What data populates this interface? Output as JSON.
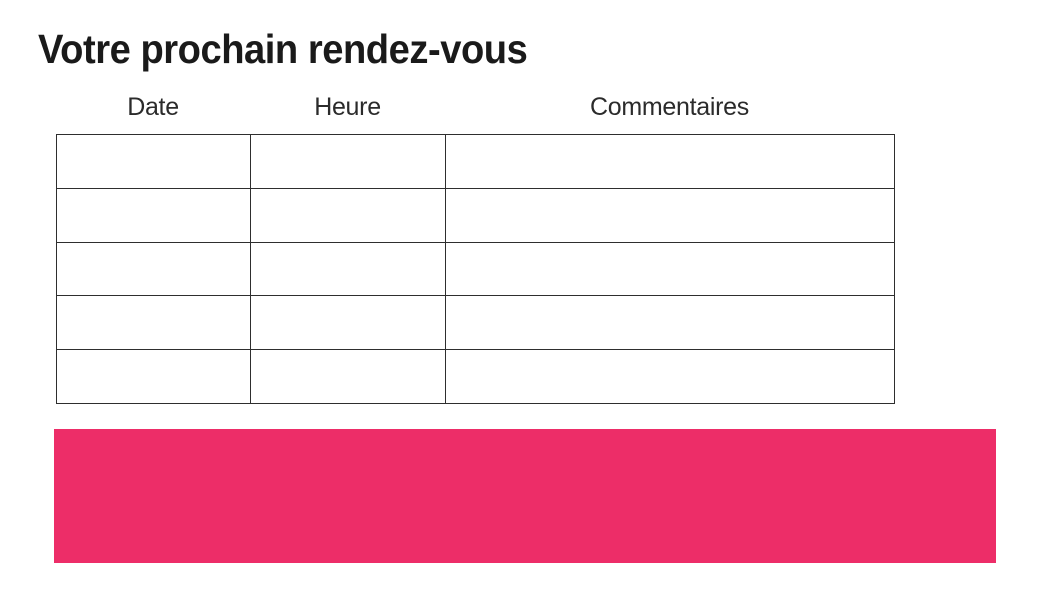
{
  "page": {
    "title": "Votre prochain rendez-vous"
  },
  "table": {
    "columns": [
      {
        "label": "Date"
      },
      {
        "label": "Heure"
      },
      {
        "label": "Commentaires"
      }
    ],
    "rows": [
      {
        "date": "",
        "heure": "",
        "commentaires": ""
      },
      {
        "date": "",
        "heure": "",
        "commentaires": ""
      },
      {
        "date": "",
        "heure": "",
        "commentaires": ""
      },
      {
        "date": "",
        "heure": "",
        "commentaires": ""
      },
      {
        "date": "",
        "heure": "",
        "commentaires": ""
      }
    ]
  },
  "highlight": {
    "text": ""
  },
  "colors": {
    "accent_pink": "#ED2D68",
    "table_border": "#2E2E2E",
    "title_text": "#1A1A1A",
    "header_text": "#2B2B2B",
    "background": "#FFFFFF"
  }
}
